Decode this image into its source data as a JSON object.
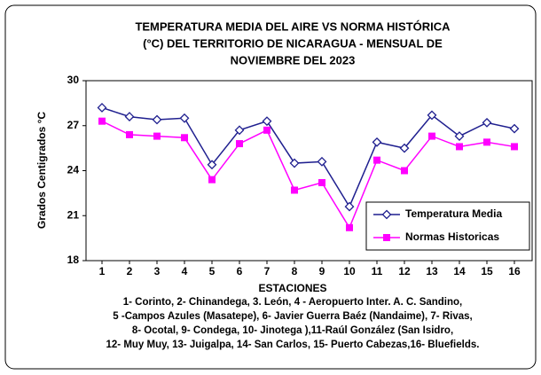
{
  "chart_data": {
    "type": "line",
    "title": [
      "TEMPERATURA MEDIA DEL AIRE  VS  NORMA  HISTÓRICA",
      "(°C) DEL TERRITORIO DE NICARAGUA   - MENSUAL DE",
      "NOVIEMBRE DEL 2023"
    ],
    "y_label": "Grados Centigrados °C",
    "x_label": "ESTACIONES",
    "notes": [
      "1- Corinto,  2- Chinandega, 3. León, 4 - Aeropuerto Inter. A. C. Sandino,",
      "5 -Campos Azules (Masatepe), 6- Javier Guerra Baéz (Nandaime), 7- Rivas,",
      "8- Ocotal, 9- Condega, 10- Jinotega ),11-Raúl González (San Isidro,",
      "12- Muy Muy, 13- Juigalpa, 14- San Carlos, 15- Puerto Cabezas,16- Bluefields."
    ],
    "categories": [
      "1",
      "2",
      "3",
      "4",
      "5",
      "6",
      "7",
      "8",
      "9",
      "10",
      "11",
      "12",
      "13",
      "14",
      "15",
      "16"
    ],
    "series": [
      {
        "name": "Temperatura Media",
        "color": "#1f1f8f",
        "marker": "diamond",
        "values": [
          28.2,
          27.6,
          27.4,
          27.5,
          24.4,
          26.7,
          27.3,
          24.5,
          24.6,
          21.6,
          25.9,
          25.5,
          27.7,
          26.3,
          27.2,
          26.8
        ]
      },
      {
        "name": "Normas Historicas",
        "color": "#ff00ff",
        "marker": "square",
        "values": [
          27.3,
          26.4,
          26.3,
          26.2,
          23.4,
          25.8,
          26.7,
          22.7,
          23.2,
          20.2,
          24.7,
          24.0,
          26.3,
          25.6,
          25.9,
          25.6
        ]
      }
    ],
    "ylim": [
      18,
      30
    ],
    "yticks": [
      18,
      21,
      24,
      27,
      30
    ],
    "grid": false,
    "legend": "lower right"
  }
}
